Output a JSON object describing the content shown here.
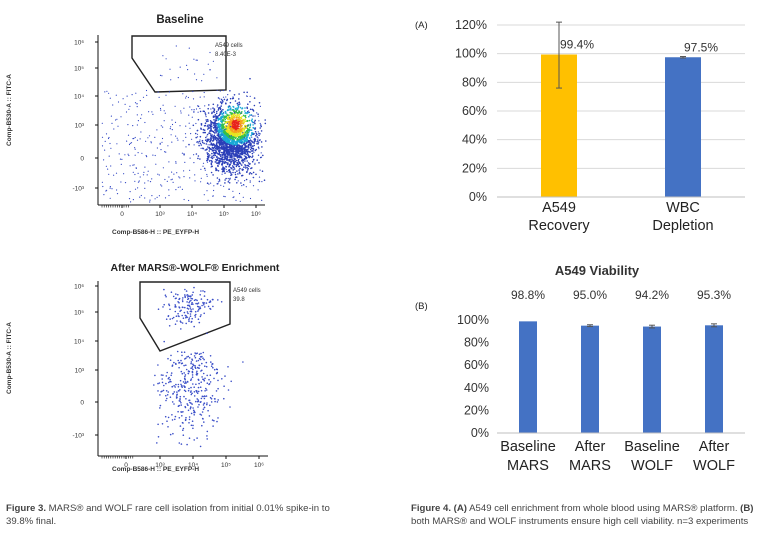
{
  "figure3": {
    "top_plot": {
      "title": "Baseline",
      "gate_label": "A549 cells",
      "gate_value": "8.40E-3",
      "y_axis_label": "Comp-B530-A :: FITC-A",
      "x_axis_label": "Comp-B586-H :: PE_EYFP-H",
      "y_ticks": [
        "10⁶",
        "10⁵",
        "10⁴",
        "10³",
        "0",
        "-10³"
      ],
      "x_ticks": [
        "0",
        "10³",
        "10⁴",
        "10⁵",
        "10⁶"
      ]
    },
    "bottom_plot": {
      "title": "After MARS®-WOLF® Enrichment",
      "gate_label": "A549 cells",
      "gate_value": "39.8",
      "y_axis_label": "Comp-B530-A :: FITC-A",
      "x_axis_label": "Comp-B586-H :: PE_EYFP-H",
      "y_ticks": [
        "10⁶",
        "10⁵",
        "10⁴",
        "10³",
        "0",
        "-10³"
      ],
      "x_ticks": [
        "0",
        "10³",
        "10⁴",
        "10⁵",
        "10⁶"
      ]
    },
    "caption_label": "Figure 3.",
    "caption_text": "MARS® and WOLF rare cell isolation from initial 0.01% spike-in to 39.8% final."
  },
  "figure4": {
    "caption_label": "Figure 4.",
    "caption_a_tag": "(A)",
    "caption_a_text": "A549 cell enrichment from whole blood using MARS® platform.",
    "caption_b_tag": "(B)",
    "caption_b_text": "both MARS® and WOLF instruments ensure high cell viability. n=3 experiments"
  },
  "chart_data": [
    {
      "type": "bar",
      "panel_label": "(A)",
      "title": "",
      "categories": [
        [
          "A549",
          "Recovery"
        ],
        [
          "WBC",
          "Depletion"
        ]
      ],
      "values": [
        99.4,
        97.5
      ],
      "value_labels": [
        "99.4%",
        "97.5%"
      ],
      "error_low": [
        76,
        97
      ],
      "error_high": [
        122,
        98
      ],
      "colors": [
        "#FFC000",
        "#4472C4"
      ],
      "ylim": [
        0,
        120
      ],
      "yticks": [
        "0%",
        "20%",
        "40%",
        "60%",
        "80%",
        "100%",
        "120%"
      ],
      "xlabel": "",
      "ylabel": ""
    },
    {
      "type": "bar",
      "panel_label": "(B)",
      "title": "A549 Viability",
      "categories": [
        [
          "Baseline",
          "MARS"
        ],
        [
          "After",
          ""
        ],
        [
          "Baseline",
          "WOLF"
        ],
        [
          "After",
          "WOLF"
        ]
      ],
      "extra_category_text": "MARS",
      "values": [
        98.8,
        95.0,
        94.2,
        95.3
      ],
      "value_labels": [
        "98.8%",
        "95.0%",
        "94.2%",
        "95.3%"
      ],
      "error_low": [
        98.8,
        94.2,
        93.0,
        94.0
      ],
      "error_high": [
        98.8,
        95.8,
        95.4,
        96.6
      ],
      "colors": [
        "#4472C4",
        "#4472C4",
        "#4472C4",
        "#4472C4"
      ],
      "ylim": [
        0,
        100
      ],
      "yticks": [
        "0%",
        "20%",
        "40%",
        "60%",
        "80%",
        "100%"
      ],
      "xlabel": "",
      "ylabel": ""
    }
  ]
}
